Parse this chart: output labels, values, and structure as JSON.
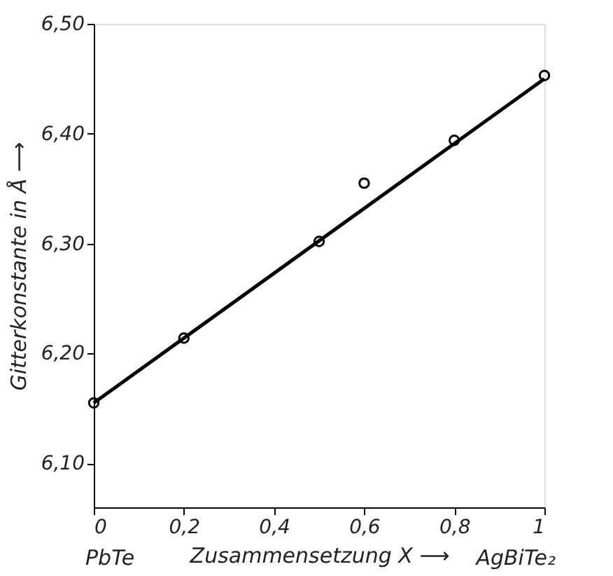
{
  "chart_data": {
    "type": "scatter",
    "xlabel": "Zusammensetzung X ⟶",
    "ylabel": "Gitterkonstante in Å ⟶",
    "annotations": [
      "PbTe",
      "AgBiTe₂"
    ],
    "xlim": [
      0,
      1
    ],
    "xticks": [
      {
        "value": 0,
        "label": "0"
      },
      {
        "value": 0.2,
        "label": "0,2"
      },
      {
        "value": 0.4,
        "label": "0,4"
      },
      {
        "value": 0.6,
        "label": "0,6"
      },
      {
        "value": 0.8,
        "label": "0,8"
      },
      {
        "value": 1,
        "label": "1"
      }
    ],
    "ylim": [
      6.06,
      6.5
    ],
    "yticks": [
      {
        "value": 6.1,
        "label": "6,10"
      },
      {
        "value": 6.2,
        "label": "6,20"
      },
      {
        "value": 6.3,
        "label": "6,30"
      },
      {
        "value": 6.4,
        "label": "6,40"
      },
      {
        "value": 6.5,
        "label": "6,50"
      }
    ],
    "grid": false,
    "marker": "circle",
    "series": [
      {
        "color": "#000000",
        "x": [
          0,
          0.2,
          0.5,
          0.6,
          0.8,
          1
        ],
        "values": [
          6.155,
          6.214,
          6.302,
          6.355,
          6.394,
          6.453
        ]
      },
      {
        "type": "line",
        "color": "#000000",
        "marker": "none",
        "line_style": "solid",
        "x": [
          0,
          1
        ],
        "values": [
          6.155,
          6.45
        ]
      }
    ]
  }
}
